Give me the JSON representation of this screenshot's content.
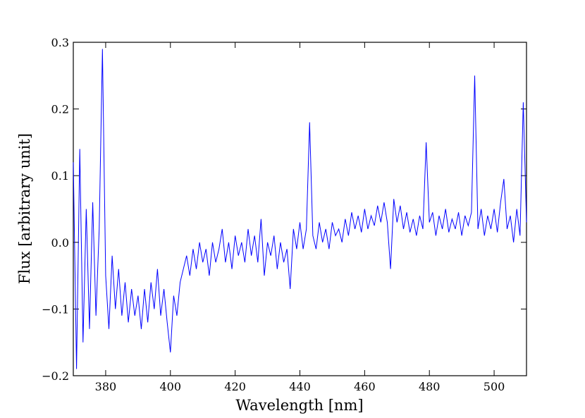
{
  "chart_data": {
    "type": "line",
    "xlabel": "Wavelength [nm]",
    "ylabel": "Flux [arbitrary unit]",
    "color": "#0000ff",
    "xlim": [
      370,
      510
    ],
    "ylim": [
      -0.2,
      0.3
    ],
    "xticks": [
      380,
      400,
      420,
      440,
      460,
      480,
      500
    ],
    "yticks": [
      {
        "value": -0.2,
        "label": "−0.2"
      },
      {
        "value": -0.1,
        "label": "−0.1"
      },
      {
        "value": 0,
        "label": "0.0"
      },
      0.1,
      0.2,
      0.3
    ],
    "x": [
      370,
      371,
      372,
      373,
      374,
      375,
      376,
      377,
      378,
      379,
      380,
      381,
      382,
      383,
      384,
      385,
      386,
      387,
      388,
      389,
      390,
      391,
      392,
      393,
      394,
      395,
      396,
      397,
      398,
      399,
      400,
      401,
      402,
      403,
      404,
      405,
      406,
      407,
      408,
      409,
      410,
      411,
      412,
      413,
      414,
      415,
      416,
      417,
      418,
      419,
      420,
      421,
      422,
      423,
      424,
      425,
      426,
      427,
      428,
      429,
      430,
      431,
      432,
      433,
      434,
      435,
      436,
      437,
      438,
      439,
      440,
      441,
      442,
      443,
      444,
      445,
      446,
      447,
      448,
      449,
      450,
      451,
      452,
      453,
      454,
      455,
      456,
      457,
      458,
      459,
      460,
      461,
      462,
      463,
      464,
      465,
      466,
      467,
      468,
      469,
      470,
      471,
      472,
      473,
      474,
      475,
      476,
      477,
      478,
      479,
      480,
      481,
      482,
      483,
      484,
      485,
      486,
      487,
      488,
      489,
      490,
      491,
      492,
      493,
      494,
      495,
      496,
      497,
      498,
      499,
      500,
      501,
      502,
      503,
      504,
      505,
      506,
      507,
      508,
      509,
      510
    ],
    "values": [
      0.12,
      -0.19,
      0.14,
      -0.15,
      0.05,
      -0.13,
      0.06,
      -0.11,
      0.02,
      0.29,
      -0.05,
      -0.13,
      -0.02,
      -0.1,
      -0.04,
      -0.11,
      -0.06,
      -0.12,
      -0.07,
      -0.11,
      -0.08,
      -0.13,
      -0.07,
      -0.12,
      -0.06,
      -0.1,
      -0.04,
      -0.11,
      -0.07,
      -0.12,
      -0.165,
      -0.08,
      -0.11,
      -0.06,
      -0.04,
      -0.02,
      -0.05,
      -0.01,
      -0.04,
      0.0,
      -0.03,
      -0.01,
      -0.05,
      0.0,
      -0.03,
      -0.01,
      0.02,
      -0.03,
      0.0,
      -0.04,
      0.01,
      -0.02,
      0.0,
      -0.03,
      0.02,
      -0.02,
      0.01,
      -0.03,
      0.035,
      -0.05,
      0.0,
      -0.02,
      0.01,
      -0.04,
      0.0,
      -0.03,
      -0.01,
      -0.07,
      0.02,
      -0.01,
      0.03,
      -0.01,
      0.02,
      0.18,
      0.01,
      -0.01,
      0.03,
      0.0,
      0.02,
      -0.01,
      0.03,
      0.01,
      0.02,
      0.0,
      0.035,
      0.01,
      0.045,
      0.02,
      0.04,
      0.015,
      0.05,
      0.02,
      0.04,
      0.025,
      0.055,
      0.03,
      0.06,
      0.03,
      -0.04,
      0.065,
      0.03,
      0.055,
      0.02,
      0.045,
      0.015,
      0.035,
      0.01,
      0.04,
      0.02,
      0.15,
      0.03,
      0.045,
      0.01,
      0.04,
      0.02,
      0.05,
      0.015,
      0.035,
      0.02,
      0.045,
      0.01,
      0.04,
      0.025,
      0.045,
      0.25,
      0.02,
      0.05,
      0.01,
      0.04,
      0.02,
      0.05,
      0.015,
      0.06,
      0.095,
      0.02,
      0.04,
      0.0,
      0.05,
      0.01,
      0.21,
      0.03
    ]
  }
}
